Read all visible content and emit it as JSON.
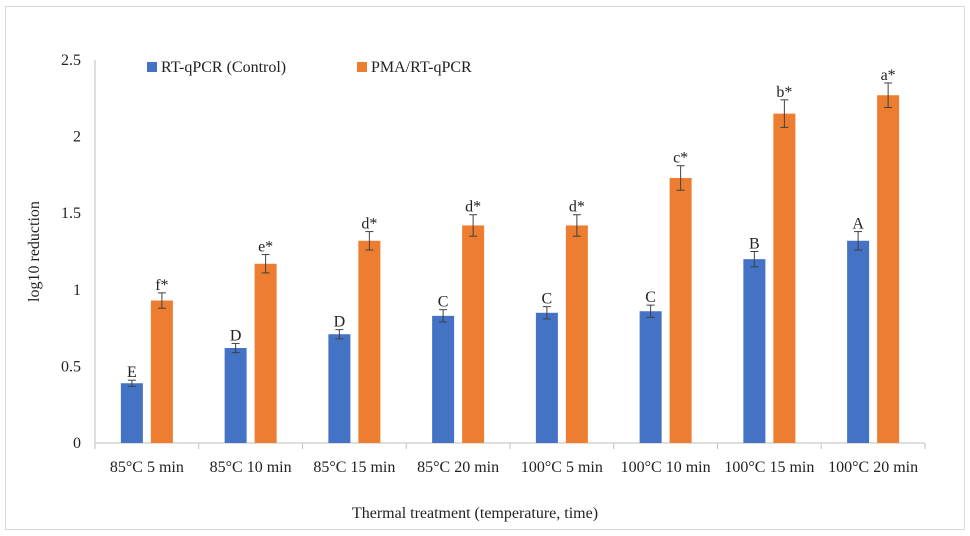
{
  "chart_data": {
    "type": "bar",
    "xlabel": "Thermal treatment (temperature, time)",
    "ylabel": "log10 reduction",
    "ylim": [
      0,
      2.5
    ],
    "yticks": [
      "0",
      "0.5",
      "1",
      "1.5",
      "2",
      "2.5"
    ],
    "grid": false,
    "legend_position": "top-left",
    "categories": [
      "85°C 5 min",
      "85°C 10 min",
      "85°C 15 min",
      "85°C 20 min",
      "100°C 5 min",
      "100°C 10 min",
      "100°C 15 min",
      "100°C 20 min"
    ],
    "series": [
      {
        "name": "RT-qPCR (Control)",
        "color": "#4472c4",
        "values": [
          0.39,
          0.62,
          0.71,
          0.83,
          0.85,
          0.86,
          1.2,
          1.32
        ],
        "errors": [
          0.02,
          0.03,
          0.03,
          0.04,
          0.04,
          0.04,
          0.05,
          0.06
        ],
        "labels": [
          "E",
          "D",
          "D",
          "C",
          "C",
          "C",
          "B",
          "A"
        ]
      },
      {
        "name": "PMA/RT-qPCR",
        "color": "#ed7d31",
        "values": [
          0.93,
          1.17,
          1.32,
          1.42,
          1.42,
          1.73,
          2.15,
          2.27
        ],
        "errors": [
          0.05,
          0.06,
          0.06,
          0.07,
          0.07,
          0.08,
          0.09,
          0.08
        ],
        "labels": [
          "f*",
          "e*",
          "d*",
          "d*",
          "d*",
          "c*",
          "b*",
          "a*"
        ]
      }
    ]
  }
}
